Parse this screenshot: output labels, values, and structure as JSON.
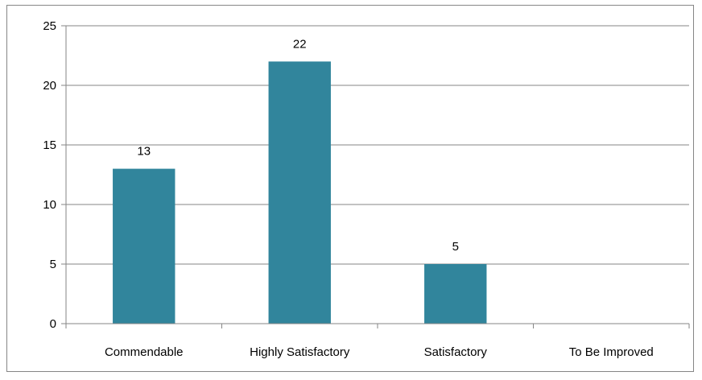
{
  "chart_data": {
    "type": "bar",
    "title": "",
    "xlabel": "",
    "ylabel": "",
    "categories": [
      "Commendable",
      "Highly Satisfactory",
      "Satisfactory",
      "To Be Improved"
    ],
    "values": [
      13,
      22,
      5,
      0
    ],
    "data_labels": [
      "13",
      "22",
      "5",
      ""
    ],
    "ylim": [
      0,
      25
    ],
    "yticks": [
      0,
      5,
      10,
      15,
      20,
      25
    ],
    "grid": true,
    "legend": "none",
    "colors": {
      "bar": "#31859C",
      "grid": "#868686",
      "axis": "#868686",
      "text": "#000000"
    }
  }
}
